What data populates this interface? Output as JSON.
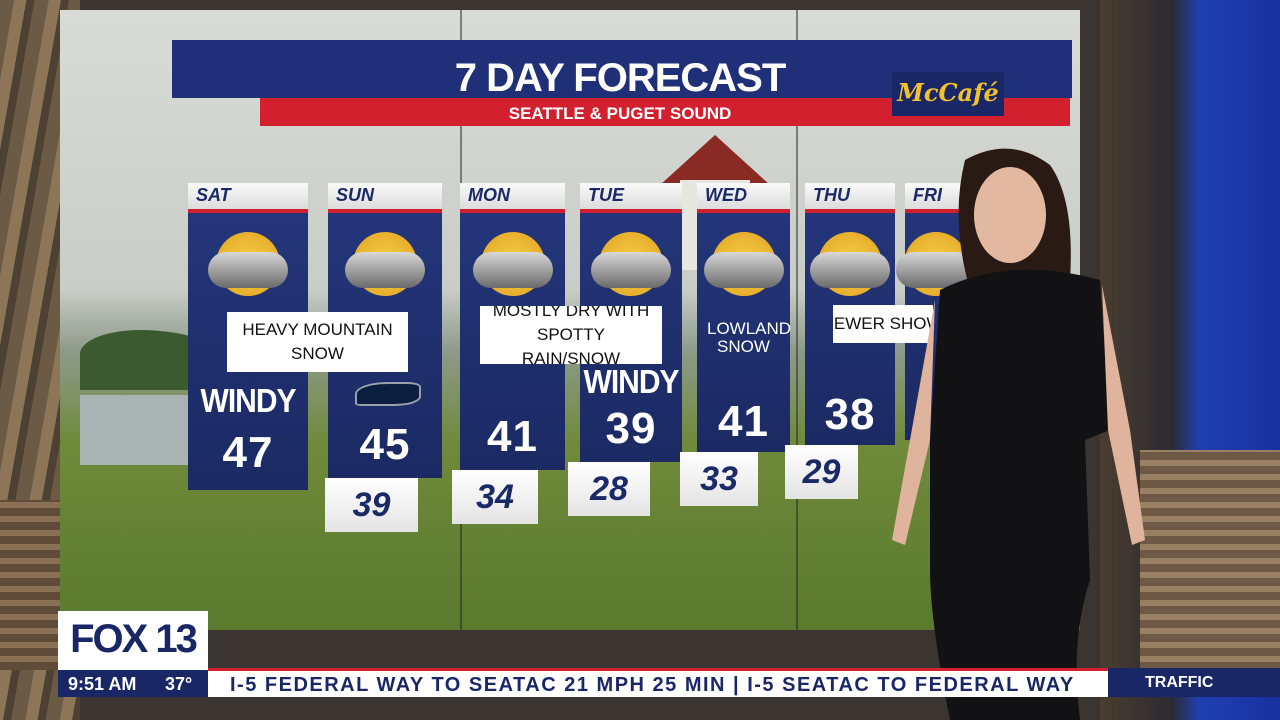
{
  "header": {
    "title": "7 DAY FORECAST",
    "subtitle": "SEATTLE & PUGET SOUND",
    "sponsor": "McCafé"
  },
  "days": [
    {
      "day": "SAT",
      "high": 47,
      "tag": "WINDY"
    },
    {
      "day": "SUN",
      "high": 45,
      "low": 39
    },
    {
      "day": "MON",
      "high": 41,
      "low": 34
    },
    {
      "day": "TUE",
      "high": 39,
      "low": 28,
      "tag": "WINDY"
    },
    {
      "day": "WED",
      "high": 41,
      "low": 33,
      "note": "LOWLAND SNOW"
    },
    {
      "day": "THU",
      "high": 38,
      "low": 29
    },
    {
      "day": "FRI"
    }
  ],
  "callouts": [
    "HEAVY MOUNTAIN SNOW",
    "MOSTLY DRY WITH SPOTTY RAIN/SNOW",
    "FEWER SHOW"
  ],
  "lower_third": {
    "station": "FOX 13",
    "time": "9:51 AM",
    "temperature": "37°",
    "ticker": "I-5 FEDERAL WAY TO SEATAC 21 MPH 25 MIN | I-5 SEATAC TO FEDERAL WAY",
    "ticker_label": "TRAFFIC"
  }
}
